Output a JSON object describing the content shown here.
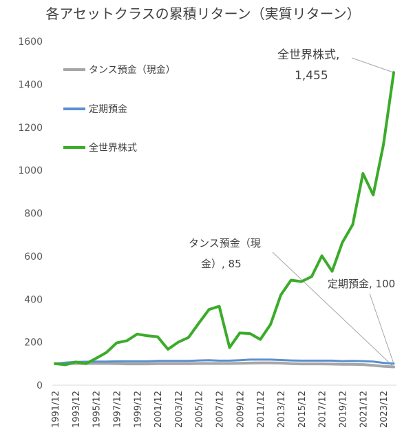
{
  "chart_data": {
    "type": "line",
    "title": "各アセットクラスの累積リターン（実質リターン）",
    "xlabel": "",
    "ylabel": "",
    "ylim": [
      0,
      1600
    ],
    "yticks": [
      "0",
      "200",
      "400",
      "600",
      "800",
      "1000",
      "1200",
      "1400",
      "1600"
    ],
    "grid": false,
    "legend_position": "top-left",
    "x": [
      "1991/12",
      "1992/12",
      "1993/12",
      "1994/12",
      "1995/12",
      "1996/12",
      "1997/12",
      "1998/12",
      "1999/12",
      "2000/12",
      "2001/12",
      "2002/12",
      "2003/12",
      "2004/12",
      "2005/12",
      "2006/12",
      "2007/12",
      "2008/12",
      "2009/12",
      "2010/12",
      "2011/12",
      "2012/12",
      "2013/12",
      "2014/12",
      "2015/12",
      "2016/12",
      "2017/12",
      "2018/12",
      "2019/12",
      "2020/12",
      "2021/12",
      "2022/12",
      "2023/12",
      "2024/12"
    ],
    "x_tick_labels": [
      "1991/12",
      "1993/12",
      "1995/12",
      "1997/12",
      "1999/12",
      "2001/12",
      "2003/12",
      "2005/12",
      "2007/12",
      "2009/12",
      "2011/12",
      "2013/12",
      "2015/12",
      "2017/12",
      "2019/12",
      "2021/12",
      "2023/12"
    ],
    "series": [
      {
        "name": "タンス預金（現金）",
        "color": "#a6a6a6",
        "values": [
          100,
          100,
          101,
          101,
          101,
          101,
          100,
          99,
          99,
          99,
          100,
          100,
          100,
          100,
          101,
          101,
          101,
          101,
          102,
          103,
          104,
          104,
          103,
          100,
          99,
          99,
          99,
          98,
          97,
          97,
          96,
          92,
          88,
          85
        ]
      },
      {
        "name": "定期預金",
        "color": "#5b8fd1",
        "values": [
          100,
          105,
          108,
          109,
          110,
          110,
          111,
          111,
          111,
          111,
          113,
          113,
          113,
          113,
          115,
          116,
          114,
          114,
          116,
          119,
          119,
          119,
          117,
          115,
          114,
          114,
          114,
          114,
          112,
          113,
          112,
          110,
          104,
          100
        ]
      },
      {
        "name": "全世界株式",
        "color": "#3bab2a",
        "values": [
          100,
          95,
          108,
          100,
          125,
          152,
          197,
          207,
          238,
          230,
          225,
          167,
          200,
          222,
          288,
          352,
          367,
          175,
          243,
          240,
          213,
          283,
          420,
          489,
          482,
          505,
          602,
          530,
          665,
          747,
          985,
          885,
          1120,
          1455
        ]
      }
    ],
    "annotations": [
      {
        "series": "全世界株式",
        "lines": [
          "全世界株式,",
          "1,455"
        ]
      },
      {
        "series": "タンス預金（現金）",
        "lines": [
          "タンス預金（現",
          "金）, 85"
        ]
      },
      {
        "series": "定期預金",
        "lines": [
          "定期預金, 100"
        ]
      }
    ]
  }
}
